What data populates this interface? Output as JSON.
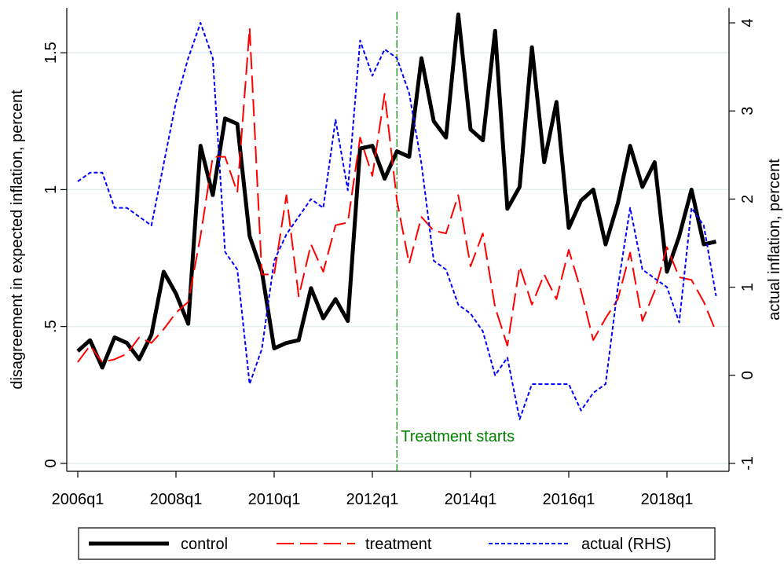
{
  "chart_data": {
    "type": "line",
    "ylabel": "disagreement in expected inflation, percent",
    "y2label": "actual inflation, percent",
    "categories": [
      "2006q1",
      null,
      null,
      null,
      null,
      null,
      null,
      null,
      "2008q1",
      null,
      null,
      null,
      null,
      null,
      null,
      null,
      "2010q1",
      null,
      null,
      null,
      null,
      null,
      null,
      null,
      "2012q1",
      null,
      null,
      null,
      null,
      null,
      null,
      null,
      "2014q1",
      null,
      null,
      null,
      null,
      null,
      null,
      null,
      "2016q1",
      null,
      null,
      null,
      null,
      null,
      null,
      null,
      "2018q1",
      null,
      null,
      null,
      null
    ],
    "series": [
      {
        "name": "control",
        "color": "#000000",
        "style": "solid",
        "values": [
          0.41,
          0.45,
          0.35,
          0.46,
          0.44,
          0.38,
          0.47,
          0.7,
          0.62,
          0.51,
          1.16,
          0.98,
          1.26,
          1.24,
          0.83,
          0.7,
          0.42,
          0.44,
          0.45,
          0.64,
          0.53,
          0.6,
          0.52,
          1.15,
          1.16,
          1.04,
          1.14,
          1.12,
          1.48,
          1.25,
          1.19,
          1.64,
          1.22,
          1.18,
          1.58,
          0.93,
          1.01,
          1.52,
          1.1,
          1.32,
          0.86,
          0.96,
          1.0,
          0.8,
          0.95,
          1.16,
          1.01,
          1.1,
          0.7,
          0.83,
          1.0,
          0.8,
          0.81
        ]
      },
      {
        "name": "treatment",
        "color": "#ff0000",
        "style": "dashed",
        "values": [
          0.37,
          0.43,
          0.37,
          0.38,
          0.4,
          0.46,
          0.44,
          0.49,
          0.55,
          0.59,
          0.83,
          1.12,
          1.12,
          0.99,
          1.59,
          0.69,
          0.69,
          0.98,
          0.61,
          0.8,
          0.7,
          0.87,
          0.88,
          1.19,
          1.05,
          1.35,
          0.96,
          0.73,
          0.9,
          0.85,
          0.84,
          0.98,
          0.72,
          0.84,
          0.57,
          0.43,
          0.72,
          0.58,
          0.69,
          0.6,
          0.78,
          0.63,
          0.45,
          0.53,
          0.6,
          0.77,
          0.52,
          0.63,
          0.79,
          0.68,
          0.67,
          0.59,
          0.48
        ]
      },
      {
        "name": "actual (RHS)",
        "color": "#0000ff",
        "style": "dotted",
        "axis": "y2",
        "values": [
          2.2,
          2.3,
          2.3,
          1.9,
          1.9,
          1.8,
          1.7,
          2.4,
          3.1,
          3.6,
          4.0,
          3.6,
          1.4,
          1.2,
          -0.1,
          0.3,
          1.3,
          1.6,
          1.8,
          2.0,
          1.9,
          2.9,
          2.1,
          3.8,
          3.4,
          3.7,
          3.6,
          3.2,
          2.4,
          1.3,
          1.2,
          0.8,
          0.7,
          0.5,
          0.0,
          0.2,
          -0.5,
          -0.1,
          -0.1,
          -0.1,
          -0.1,
          -0.4,
          -0.2,
          -0.1,
          1.0,
          1.9,
          1.2,
          1.1,
          1.0,
          0.6,
          1.9,
          1.7,
          0.9
        ]
      }
    ],
    "ylim": [
      -0.029,
      1.664
    ],
    "yticks": [
      0,
      {
        "value": 0.5,
        "label": ".5"
      },
      1,
      1.5
    ],
    "y2lim": [
      -1.09,
      4.17
    ],
    "y2ticks": [
      -1,
      0,
      1,
      2,
      3,
      4
    ],
    "grid": true,
    "legend": "bottom",
    "vline": {
      "index": 26,
      "label": "Treatment starts",
      "color": "#008000"
    }
  }
}
